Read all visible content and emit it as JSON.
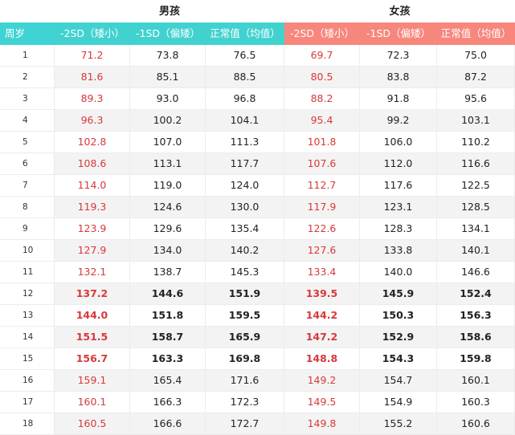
{
  "groups": {
    "boys": "男孩",
    "girls": "女孩"
  },
  "headers": {
    "age": "周岁",
    "boys": [
      "-2SD（矮小）",
      "-1SD（偏矮）",
      "正常值（均值）"
    ],
    "girls": [
      "-2SD（矮小）",
      "-1SD（偏矮）",
      "正常值（均值）"
    ]
  },
  "colors": {
    "boys_header": "#41d2d0",
    "girls_header": "#f7877c",
    "short_value": "#d9383a"
  },
  "rows": [
    {
      "age": "1",
      "b": [
        "71.2",
        "73.8",
        "76.5"
      ],
      "g": [
        "69.7",
        "72.3",
        "75.0"
      ]
    },
    {
      "age": "2",
      "b": [
        "81.6",
        "85.1",
        "88.5"
      ],
      "g": [
        "80.5",
        "83.8",
        "87.2"
      ]
    },
    {
      "age": "3",
      "b": [
        "89.3",
        "93.0",
        "96.8"
      ],
      "g": [
        "88.2",
        "91.8",
        "95.6"
      ]
    },
    {
      "age": "4",
      "b": [
        "96.3",
        "100.2",
        "104.1"
      ],
      "g": [
        "95.4",
        "99.2",
        "103.1"
      ]
    },
    {
      "age": "5",
      "b": [
        "102.8",
        "107.0",
        "111.3"
      ],
      "g": [
        "101.8",
        "106.0",
        "110.2"
      ]
    },
    {
      "age": "6",
      "b": [
        "108.6",
        "113.1",
        "117.7"
      ],
      "g": [
        "107.6",
        "112.0",
        "116.6"
      ]
    },
    {
      "age": "7",
      "b": [
        "114.0",
        "119.0",
        "124.0"
      ],
      "g": [
        "112.7",
        "117.6",
        "122.5"
      ]
    },
    {
      "age": "8",
      "b": [
        "119.3",
        "124.6",
        "130.0"
      ],
      "g": [
        "117.9",
        "123.1",
        "128.5"
      ]
    },
    {
      "age": "9",
      "b": [
        "123.9",
        "129.6",
        "135.4"
      ],
      "g": [
        "122.6",
        "128.3",
        "134.1"
      ]
    },
    {
      "age": "10",
      "b": [
        "127.9",
        "134.0",
        "140.2"
      ],
      "g": [
        "127.6",
        "133.8",
        "140.1"
      ]
    },
    {
      "age": "11",
      "b": [
        "132.1",
        "138.7",
        "145.3"
      ],
      "g": [
        "133.4",
        "140.0",
        "146.6"
      ]
    },
    {
      "age": "12",
      "b": [
        "137.2",
        "144.6",
        "151.9"
      ],
      "g": [
        "139.5",
        "145.9",
        "152.4"
      ]
    },
    {
      "age": "13",
      "b": [
        "144.0",
        "151.8",
        "159.5"
      ],
      "g": [
        "144.2",
        "150.3",
        "156.3"
      ]
    },
    {
      "age": "14",
      "b": [
        "151.5",
        "158.7",
        "165.9"
      ],
      "g": [
        "147.2",
        "152.9",
        "158.6"
      ]
    },
    {
      "age": "15",
      "b": [
        "156.7",
        "163.3",
        "169.8"
      ],
      "g": [
        "148.8",
        "154.3",
        "159.8"
      ]
    },
    {
      "age": "16",
      "b": [
        "159.1",
        "165.4",
        "171.6"
      ],
      "g": [
        "149.2",
        "154.7",
        "160.1"
      ]
    },
    {
      "age": "17",
      "b": [
        "160.1",
        "166.3",
        "172.3"
      ],
      "g": [
        "149.5",
        "154.9",
        "160.3"
      ]
    },
    {
      "age": "18",
      "b": [
        "160.5",
        "166.6",
        "172.7"
      ],
      "g": [
        "149.8",
        "155.2",
        "160.6"
      ]
    }
  ]
}
